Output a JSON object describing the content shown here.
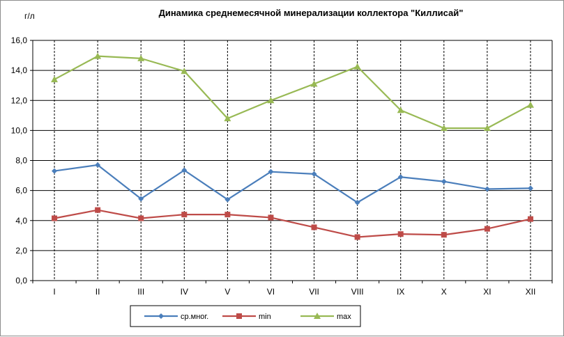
{
  "chart_data": {
    "type": "line",
    "title": "Динамика среднемесячной минерализации коллектора \"Киллисай\"",
    "ylabel": "г/л",
    "xlabel": "",
    "ylim": [
      0,
      16
    ],
    "yticks": [
      "0,0",
      "2,0",
      "4,0",
      "6,0",
      "8,0",
      "10,0",
      "12,0",
      "14,0",
      "16,0"
    ],
    "categories": [
      "I",
      "II",
      "III",
      "IV",
      "V",
      "VI",
      "VII",
      "VIII",
      "IX",
      "X",
      "XI",
      "XII"
    ],
    "grid": true,
    "legend_position": "bottom",
    "series": [
      {
        "name": "ср.мног.",
        "color": "#4a7ebb",
        "marker": "diamond",
        "values": [
          7.3,
          7.7,
          5.45,
          7.35,
          5.4,
          7.25,
          7.1,
          5.2,
          6.9,
          6.6,
          6.1,
          6.15
        ]
      },
      {
        "name": "min",
        "color": "#be4b48",
        "marker": "square",
        "values": [
          4.15,
          4.7,
          4.15,
          4.4,
          4.4,
          4.2,
          3.55,
          2.9,
          3.1,
          3.05,
          3.45,
          4.1
        ]
      },
      {
        "name": "max",
        "color": "#98b954",
        "marker": "triangle",
        "values": [
          13.4,
          14.95,
          14.8,
          13.95,
          10.8,
          12.0,
          13.1,
          14.25,
          11.35,
          10.15,
          10.15,
          11.7
        ]
      }
    ]
  }
}
